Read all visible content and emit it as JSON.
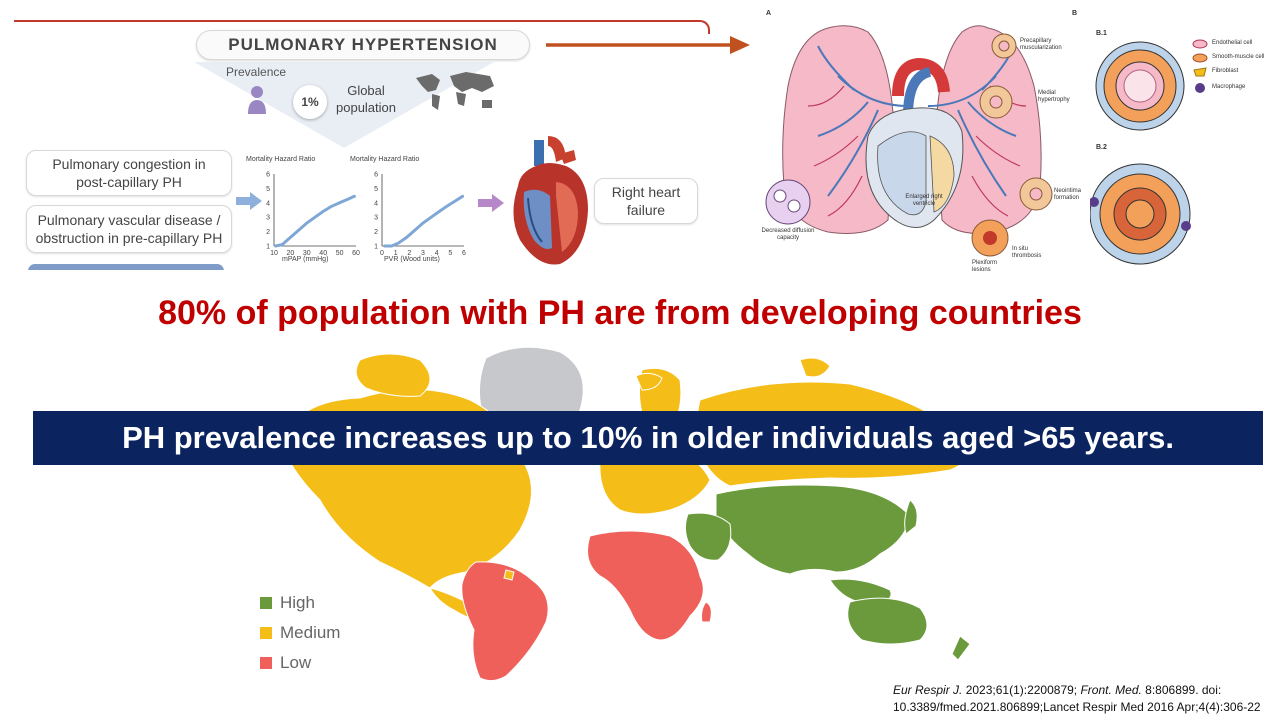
{
  "infographic": {
    "title": "PULMONARY HYPERTENSION",
    "prevalence_label": "Prevalence",
    "prevalence_value": "1%",
    "global_population_line1": "Global",
    "global_population_line2": "population",
    "box_congestion_line1": "Pulmonary congestion in",
    "box_congestion_line2": "post-capillary PH",
    "box_vascular_line1": "Pulmonary vascular disease /",
    "box_vascular_line2": "obstruction in pre-capillary PH",
    "box_rhf_line1": "Right heart",
    "box_rhf_line2": "failure"
  },
  "chart_data": [
    {
      "type": "line",
      "title": "Mortality Hazard Ratio",
      "xlabel": "mPAP (mmHg)",
      "x_ticks": [
        "10",
        "20",
        "30",
        "40",
        "50",
        "60"
      ],
      "y_ticks": [
        "1",
        "2",
        "3",
        "4",
        "5",
        "6"
      ],
      "xlim": [
        10,
        60
      ],
      "ylim": [
        1,
        6
      ],
      "x": [
        11,
        15,
        20,
        25,
        30,
        35,
        40,
        45,
        50,
        55,
        59
      ],
      "y": [
        1.0,
        1.1,
        1.6,
        2.1,
        2.6,
        3.0,
        3.4,
        3.75,
        4.0,
        4.25,
        4.45
      ]
    },
    {
      "type": "line",
      "title": "Mortality Hazard Ratio",
      "xlabel": "PVR (Wood units)",
      "x_ticks": [
        "0",
        "1",
        "2",
        "3",
        "4",
        "5",
        "6"
      ],
      "y_ticks": [
        "1",
        "2",
        "3",
        "4",
        "5",
        "6"
      ],
      "xlim": [
        0,
        6
      ],
      "ylim": [
        1,
        6
      ],
      "x": [
        0.2,
        0.7,
        1.2,
        1.8,
        2.4,
        3.0,
        3.6,
        4.2,
        4.8,
        5.4,
        5.9
      ],
      "y": [
        1.0,
        1.0,
        1.2,
        1.6,
        2.1,
        2.6,
        3.0,
        3.4,
        3.8,
        4.15,
        4.45
      ]
    }
  ],
  "lung_figure": {
    "panel_a": "A",
    "panel_b": "B",
    "panel_b1": "B.1",
    "panel_b2": "B.2",
    "labels": {
      "precapillary": "Precapillary muscularization",
      "medial": "Medial hypertrophy",
      "neointima": "Neointima formation",
      "in_situ": "In situ thrombosis",
      "plexiform": "Plexiform lesions",
      "enlarged_rv": "Enlarged right ventricle",
      "decreased_diff": "Decreased diffusion capacity"
    },
    "legend": {
      "endothelial": "Endothelial cell",
      "smooth_muscle": "Smooth-muscle cell",
      "fibroblast": "Fibroblast",
      "macrophage": "Macrophage"
    }
  },
  "headline": "80% of population with PH are from developing countries",
  "banner": "PH prevalence increases up to 10% in older individuals aged >65 years.",
  "map_legend": {
    "high": "High",
    "medium": "Medium",
    "low": "Low"
  },
  "colors": {
    "high": "#6a9a3c",
    "medium": "#f5bd18",
    "low": "#f0605a",
    "no_data": "#c6c8cc",
    "headline": "#c00000",
    "banner_bg": "#0b2460",
    "arrow": "#c0501e"
  },
  "citation": {
    "part1_italic": "Eur Respir J.",
    "part1": " 2023;61(1):2200879;  ",
    "part2_italic": "Front. Med.",
    "part2": " 8:806899. doi: 10.3389/fmed.2021.806899;Lancet Respir Med 2016 Apr;4(4):306-22"
  }
}
